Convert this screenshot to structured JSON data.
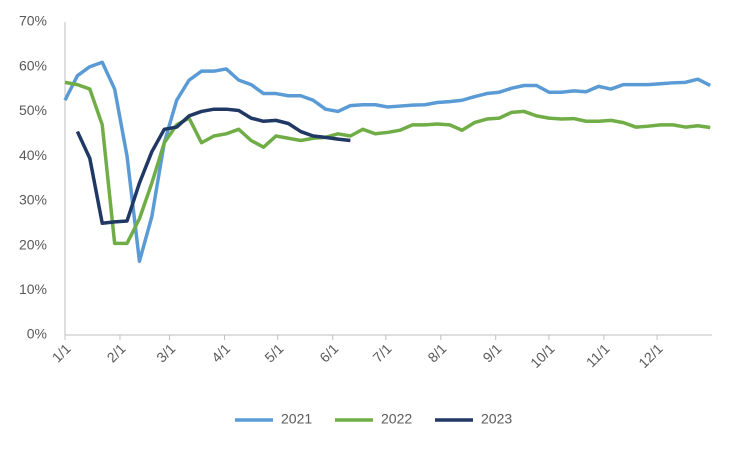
{
  "chart_data": {
    "type": "line",
    "x": [
      0,
      7,
      14,
      21,
      28,
      35,
      42,
      49,
      56,
      63,
      70,
      77,
      84,
      91,
      98,
      105,
      112,
      119,
      126,
      133,
      140,
      147,
      154,
      161,
      168,
      175,
      182,
      189,
      196,
      203,
      210,
      217,
      224,
      231,
      238,
      245,
      252,
      259,
      266,
      273,
      280,
      287,
      294,
      301,
      308,
      315,
      322,
      329,
      336,
      343,
      350,
      357,
      364
    ],
    "xlim": [
      0,
      365
    ],
    "xticks": [
      {
        "value": 0,
        "label": "1/1"
      },
      {
        "value": 31,
        "label": "2/1"
      },
      {
        "value": 59,
        "label": "3/1"
      },
      {
        "value": 90,
        "label": "4/1"
      },
      {
        "value": 120,
        "label": "5/1"
      },
      {
        "value": 151,
        "label": "6/1"
      },
      {
        "value": 181,
        "label": "7/1"
      },
      {
        "value": 212,
        "label": "8/1"
      },
      {
        "value": 243,
        "label": "9/1"
      },
      {
        "value": 273,
        "label": "10/1"
      },
      {
        "value": 304,
        "label": "11/1"
      },
      {
        "value": 334,
        "label": "12/1"
      }
    ],
    "ylim": [
      0,
      70
    ],
    "yticks": [
      {
        "value": 0,
        "label": "0%"
      },
      {
        "value": 10,
        "label": "10%"
      },
      {
        "value": 20,
        "label": "20%"
      },
      {
        "value": 30,
        "label": "30%"
      },
      {
        "value": 40,
        "label": "40%"
      },
      {
        "value": 50,
        "label": "50%"
      },
      {
        "value": 60,
        "label": "60%"
      },
      {
        "value": 70,
        "label": "70%"
      }
    ],
    "grid": false,
    "legend": "bottom",
    "series": [
      {
        "name": "2021",
        "color": "#5b9bd5",
        "values": [
          52.5,
          58,
          60,
          61,
          55,
          40,
          16.5,
          26.5,
          43,
          52.5,
          57,
          59,
          59,
          59.5,
          57,
          56,
          54,
          54,
          53.5,
          53.5,
          52.5,
          50.5,
          50,
          51.3,
          51.5,
          51.5,
          51,
          51.2,
          51.4,
          51.5,
          52,
          52.2,
          52.5,
          53.3,
          54,
          54.3,
          55.2,
          55.8,
          55.8,
          54.3,
          54.3,
          54.6,
          54.4,
          55.6,
          55,
          56,
          56,
          56,
          56.2,
          56.4,
          56.5,
          57.2,
          55.8
        ]
      },
      {
        "name": "2022",
        "color": "#70ad47",
        "values": [
          56.5,
          56,
          55,
          47,
          20.5,
          20.5,
          26,
          34,
          43,
          47,
          48.5,
          43,
          44.5,
          45,
          46,
          43.5,
          42,
          44.5,
          44,
          43.5,
          44,
          44.2,
          45,
          44.5,
          46,
          45,
          45.3,
          45.8,
          47,
          47,
          47.2,
          47,
          45.8,
          47.5,
          48.3,
          48.5,
          49.8,
          50,
          49,
          48.5,
          48.3,
          48.4,
          47.8,
          47.8,
          48,
          47.5,
          46.5,
          46.7,
          47,
          47,
          46.5,
          46.8,
          46.4
        ]
      },
      {
        "name": "2023",
        "color": "#203864",
        "values": [
          null,
          45.5,
          39.5,
          25,
          25.3,
          25.5,
          34,
          41,
          46,
          46.5,
          49,
          50,
          50.5,
          50.5,
          50.2,
          48.5,
          47.8,
          48,
          47.3,
          45.5,
          44.5,
          44.2,
          43.8,
          43.5,
          null,
          null,
          null,
          null,
          null,
          null,
          null,
          null,
          null,
          null,
          null,
          null,
          null,
          null,
          null,
          null,
          null,
          null,
          null,
          null,
          null,
          null,
          null,
          null,
          null,
          null,
          null,
          null,
          null
        ]
      }
    ]
  }
}
